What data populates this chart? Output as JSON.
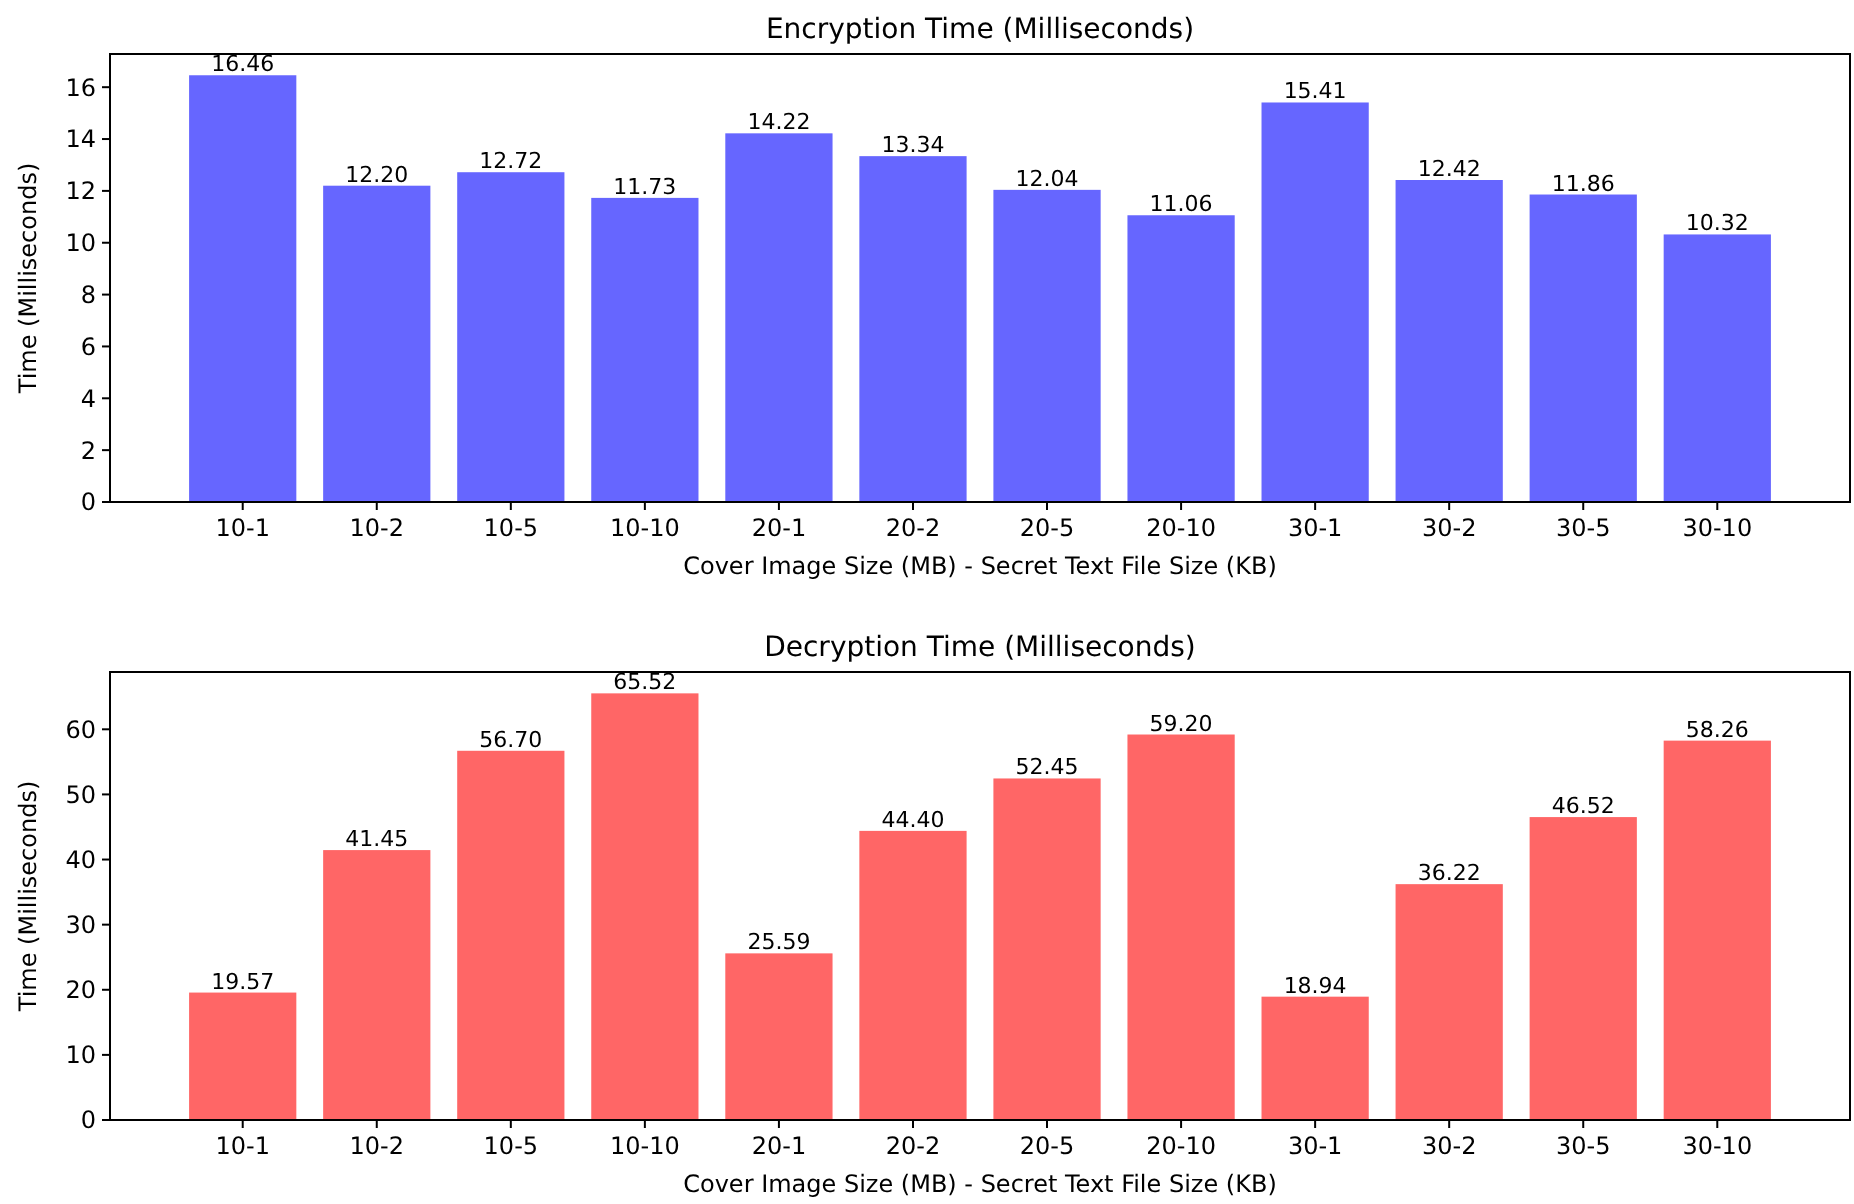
{
  "chart_data": [
    {
      "type": "bar",
      "title": "Encryption Time (Milliseconds)",
      "xlabel": "Cover Image Size (MB) - Secret Text File Size (KB)",
      "ylabel": "Time (Milliseconds)",
      "categories": [
        "10-1",
        "10-2",
        "10-5",
        "10-10",
        "20-1",
        "20-2",
        "20-5",
        "20-10",
        "30-1",
        "30-2",
        "30-5",
        "30-10"
      ],
      "values": [
        16.46,
        12.2,
        12.72,
        11.73,
        14.22,
        13.34,
        12.04,
        11.06,
        15.41,
        12.42,
        11.86,
        10.32
      ],
      "value_labels": [
        "16.46",
        "12.20",
        "12.72",
        "11.73",
        "14.22",
        "13.34",
        "12.04",
        "11.06",
        "15.41",
        "12.42",
        "11.86",
        "10.32"
      ],
      "color": "#6666ff",
      "ylim": [
        0,
        17.28
      ],
      "yticks": [
        0,
        2,
        4,
        6,
        8,
        10,
        12,
        14,
        16
      ]
    },
    {
      "type": "bar",
      "title": "Decryption Time (Milliseconds)",
      "xlabel": "Cover Image Size (MB) - Secret Text File Size (KB)",
      "ylabel": "Time (Milliseconds)",
      "categories": [
        "10-1",
        "10-2",
        "10-5",
        "10-10",
        "20-1",
        "20-2",
        "20-5",
        "20-10",
        "30-1",
        "30-2",
        "30-5",
        "30-10"
      ],
      "values": [
        19.57,
        41.45,
        56.7,
        65.52,
        25.59,
        44.4,
        52.45,
        59.2,
        18.94,
        36.22,
        46.52,
        58.26
      ],
      "value_labels": [
        "19.57",
        "41.45",
        "56.70",
        "65.52",
        "25.59",
        "44.40",
        "52.45",
        "59.20",
        "18.94",
        "36.22",
        "46.52",
        "58.26"
      ],
      "color": "#ff6666",
      "ylim": [
        0,
        68.8
      ],
      "yticks": [
        0,
        10,
        20,
        30,
        40,
        50,
        60
      ]
    }
  ]
}
